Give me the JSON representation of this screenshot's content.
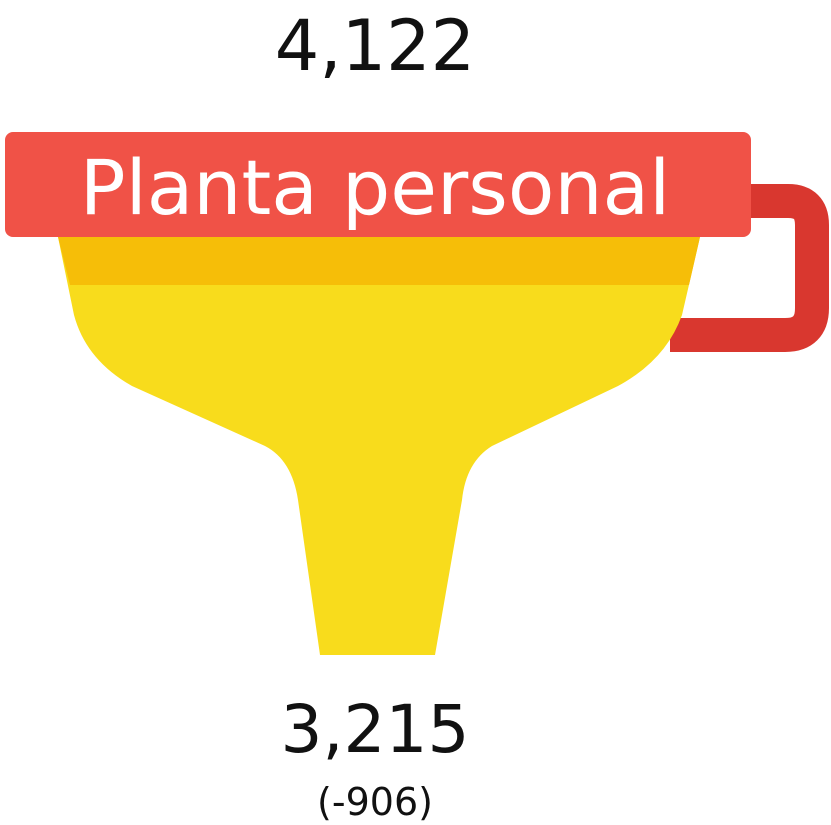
{
  "top_value": "4,122",
  "label": "Planta personal",
  "bottom_value": "3,215",
  "difference": "(-906)"
}
